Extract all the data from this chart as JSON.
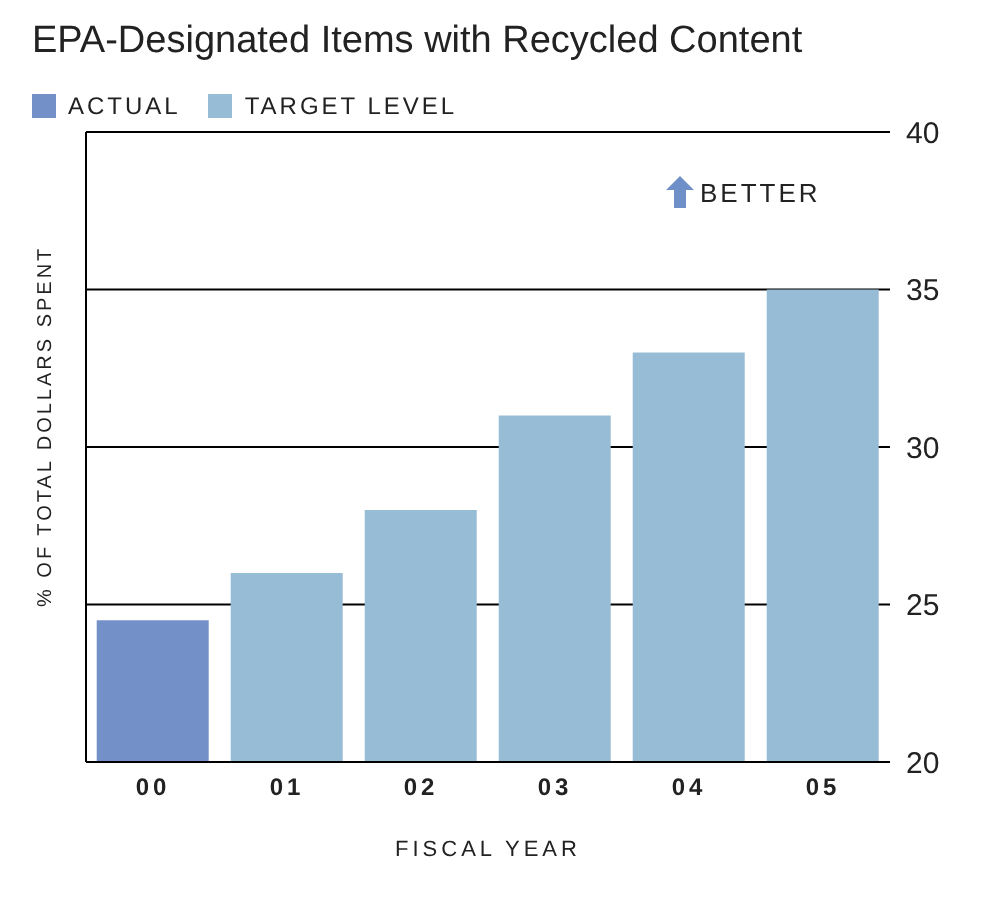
{
  "chart_data": {
    "type": "bar",
    "title": "EPA-Designated Items with Recycled Content",
    "xlabel": "FISCAL YEAR",
    "ylabel": "% OF TOTAL DOLLARS SPENT",
    "categories": [
      "00",
      "01",
      "02",
      "03",
      "04",
      "05"
    ],
    "series": [
      {
        "name": "ACTUAL",
        "color": "#7391c8",
        "values": [
          24.5,
          null,
          null,
          null,
          null,
          null
        ]
      },
      {
        "name": "TARGET LEVEL",
        "color": "#97bdd6",
        "values": [
          null,
          26,
          28,
          31,
          33,
          35
        ]
      }
    ],
    "ylim": [
      20,
      40
    ],
    "yticks": [
      20,
      25,
      30,
      35,
      40
    ],
    "grid": "y",
    "legend": "top left",
    "annotations": [
      "BETTER"
    ]
  }
}
